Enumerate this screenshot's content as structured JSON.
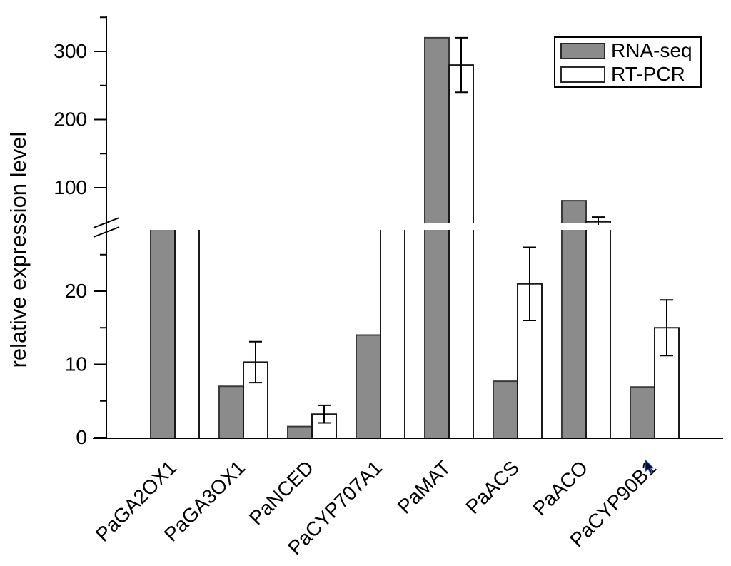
{
  "chart_data": {
    "type": "bar",
    "title": "",
    "ylabel": "relative expression level",
    "xlabel": "",
    "grid": false,
    "legend_position": "top-right",
    "axis_break": {
      "present": true,
      "lower_range": [
        0,
        28
      ],
      "upper_range": [
        50,
        350
      ],
      "note": "bars reaching into the hidden 28-50 band are clipped at the break"
    },
    "y_axis": {
      "lower_ticks": [
        0,
        10,
        20
      ],
      "lower_minor_ticks": [
        5,
        15,
        25
      ],
      "upper_ticks": [
        100,
        200,
        300
      ],
      "upper_minor_ticks": [
        150,
        250,
        350
      ]
    },
    "categories": [
      "PaGA2OX1",
      "PaGA3OX1",
      "PaNCED",
      "PaCYP707A1",
      "PaMAT",
      "PaACS",
      "PaACO",
      "PaCYP90B1"
    ],
    "series": [
      {
        "name": "RNA-seq",
        "fill": "#8b8b8b",
        "edge": "#3a3a3a",
        "bars": [
          {
            "v": null,
            "clipped": true
          },
          {
            "v": 7.0
          },
          {
            "v": 1.5
          },
          {
            "v": 14
          },
          {
            "v": 320
          },
          {
            "v": 7.7
          },
          {
            "v": 81
          },
          {
            "v": 6.9
          }
        ]
      },
      {
        "name": "RT-PCR",
        "fill": "#ffffff",
        "edge": "#1a1a1a",
        "bars": [
          {
            "v": null,
            "clipped": true
          },
          {
            "v": 10.3,
            "err": 2.8
          },
          {
            "v": 3.2,
            "err": 1.2
          },
          {
            "v": null,
            "clipped": true
          },
          {
            "v": 280,
            "err": 40
          },
          {
            "v": 21,
            "err": 5
          },
          {
            "v": 50,
            "err": 7
          },
          {
            "v": 15,
            "err": 3.8
          }
        ]
      }
    ],
    "colors": {
      "axis": "#000000",
      "text": "#000000",
      "rnaseq_fill": "#8b8b8b",
      "rtpcr_fill": "#ffffff",
      "cursor_blue": "#4d79d9"
    }
  }
}
